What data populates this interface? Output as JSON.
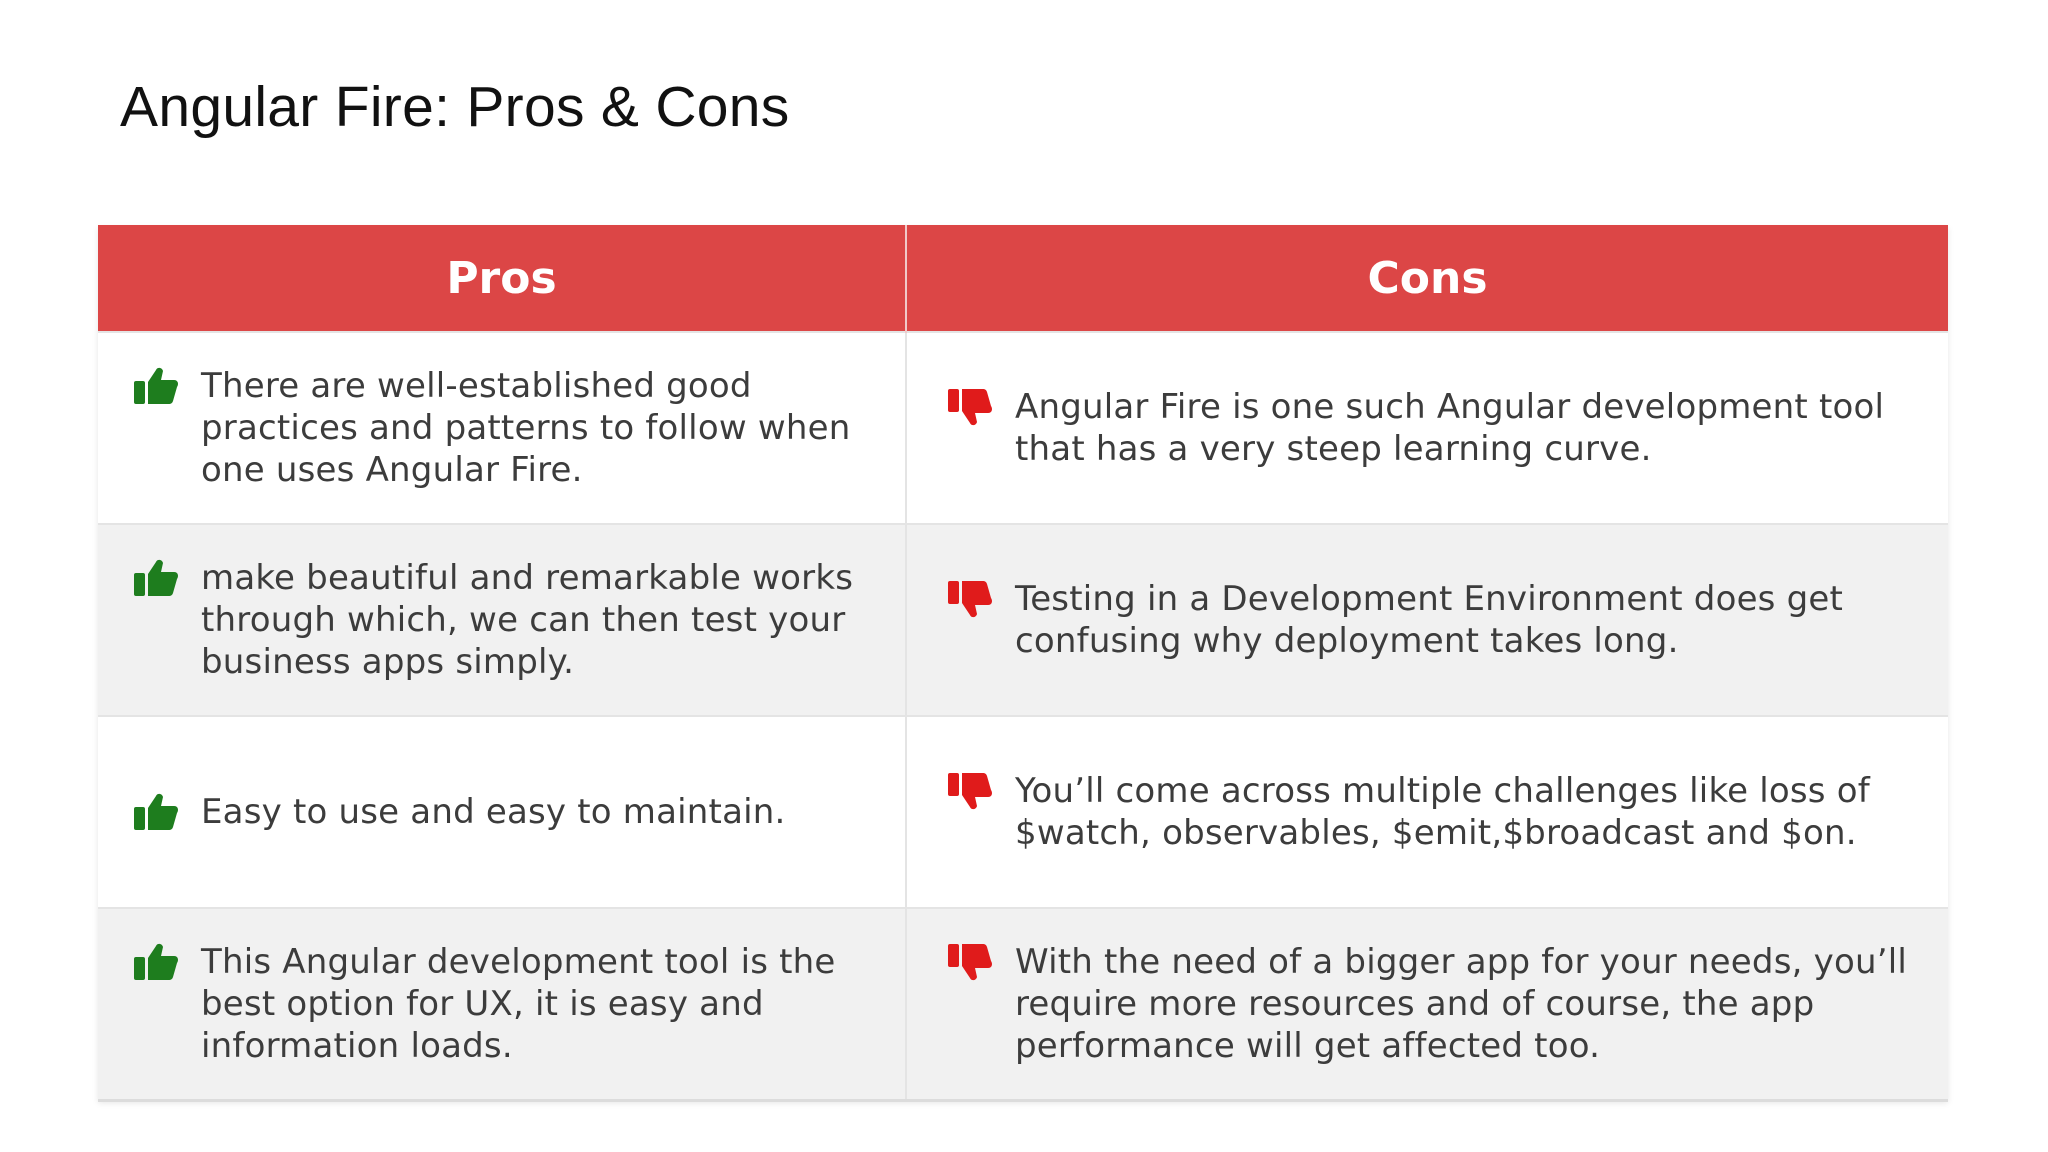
{
  "slide": {
    "title": "Angular Fire: Pros & Cons"
  },
  "table": {
    "headers": {
      "pros": "Pros",
      "cons": "Cons"
    },
    "rows": [
      {
        "pro": "There are well-established good practices and patterns to follow when one uses Angular Fire.",
        "con": "Angular Fire is one such Angular development tool that has a very steep learning curve."
      },
      {
        "pro": "make beautiful and remarkable works through which, we can then test your business apps simply.",
        "con": "Testing in a Development Environment does get confusing why deployment takes long."
      },
      {
        "pro": "Easy to use and easy to maintain.",
        "con": "You’ll come across multiple challenges like loss of $watch, observables, $emit,$broadcast and $on."
      },
      {
        "pro": "This Angular development tool is the best option for UX, it is easy and information loads.",
        "con": "With the need of a bigger app for your needs, you’ll require more resources and of course, the app performance will get affected too."
      }
    ],
    "icons": {
      "pro": "thumbs-up-icon",
      "con": "thumbs-down-icon"
    },
    "colors": {
      "header_bg": "#dc4646",
      "pro_icon": "#1e7d1e",
      "con_icon": "#e01b1b",
      "row_alt_bg": "#f1f1f1"
    }
  }
}
